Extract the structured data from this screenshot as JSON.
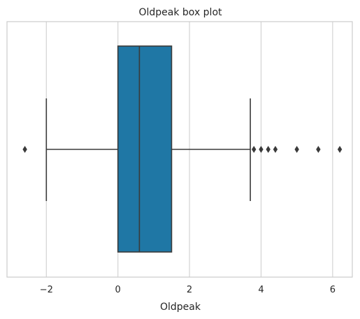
{
  "chart_data": {
    "type": "box",
    "orientation": "horizontal",
    "title": "Oldpeak box plot",
    "xlabel": "Oldpeak",
    "ylabel": "",
    "xlim": [
      -3.1,
      6.55
    ],
    "xticks": [
      -2,
      0,
      2,
      4,
      6
    ],
    "xtick_labels": [
      "−2",
      "0",
      "2",
      "4",
      "6"
    ],
    "grid": "vertical",
    "box": {
      "whisker_low": -2.0,
      "q1": 0.0,
      "median": 0.6,
      "q3": 1.5,
      "whisker_high": 3.7
    },
    "outliers": [
      -2.6,
      3.8,
      4.0,
      4.2,
      4.4,
      5.0,
      5.6,
      6.2
    ],
    "colors": {
      "box_fill": "#1f77a5",
      "line": "#3a3a3a",
      "grid": "#d3d3d3",
      "frame": "#cccccc",
      "outlier": "#3a3a3a"
    }
  }
}
